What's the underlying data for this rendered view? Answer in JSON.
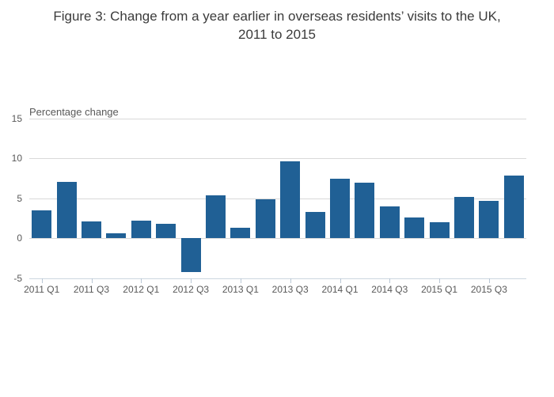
{
  "title": {
    "line1": "Figure 3: Change from a year earlier in overseas residents’ visits to the UK,",
    "line2": "2011 to 2015"
  },
  "chart_data": {
    "type": "bar",
    "title": "Figure 3: Change from a year earlier in overseas residents’ visits to the UK, 2011 to 2015",
    "axis_title": "Percentage change",
    "categories": [
      "2011 Q1",
      "2011 Q2",
      "2011 Q3",
      "2011 Q4",
      "2012 Q1",
      "2012 Q2",
      "2012 Q3",
      "2012 Q4",
      "2013 Q1",
      "2013 Q2",
      "2013 Q3",
      "2013 Q4",
      "2014 Q1",
      "2014 Q2",
      "2014 Q3",
      "2014 Q4",
      "2015 Q1",
      "2015 Q2",
      "2015 Q3",
      "2015 Q4"
    ],
    "values": [
      3.5,
      7.1,
      2.1,
      0.6,
      2.2,
      1.8,
      -4.2,
      5.4,
      1.3,
      4.9,
      9.7,
      3.3,
      7.5,
      7.0,
      4.0,
      2.6,
      2.0,
      5.2,
      4.7,
      7.9
    ],
    "x_tick_labels": [
      "2011 Q1",
      "2011 Q3",
      "2012 Q1",
      "2012 Q3",
      "2013 Q1",
      "2013 Q3",
      "2014 Q1",
      "2014 Q3",
      "2015 Q1",
      "2015 Q3"
    ],
    "y_ticks": [
      15,
      10,
      5,
      0,
      -5
    ],
    "ylim": [
      -5,
      15
    ],
    "xlabel": "",
    "ylabel": "Percentage change",
    "grid": true,
    "legend_position": "none",
    "bar_color": "#206095"
  }
}
